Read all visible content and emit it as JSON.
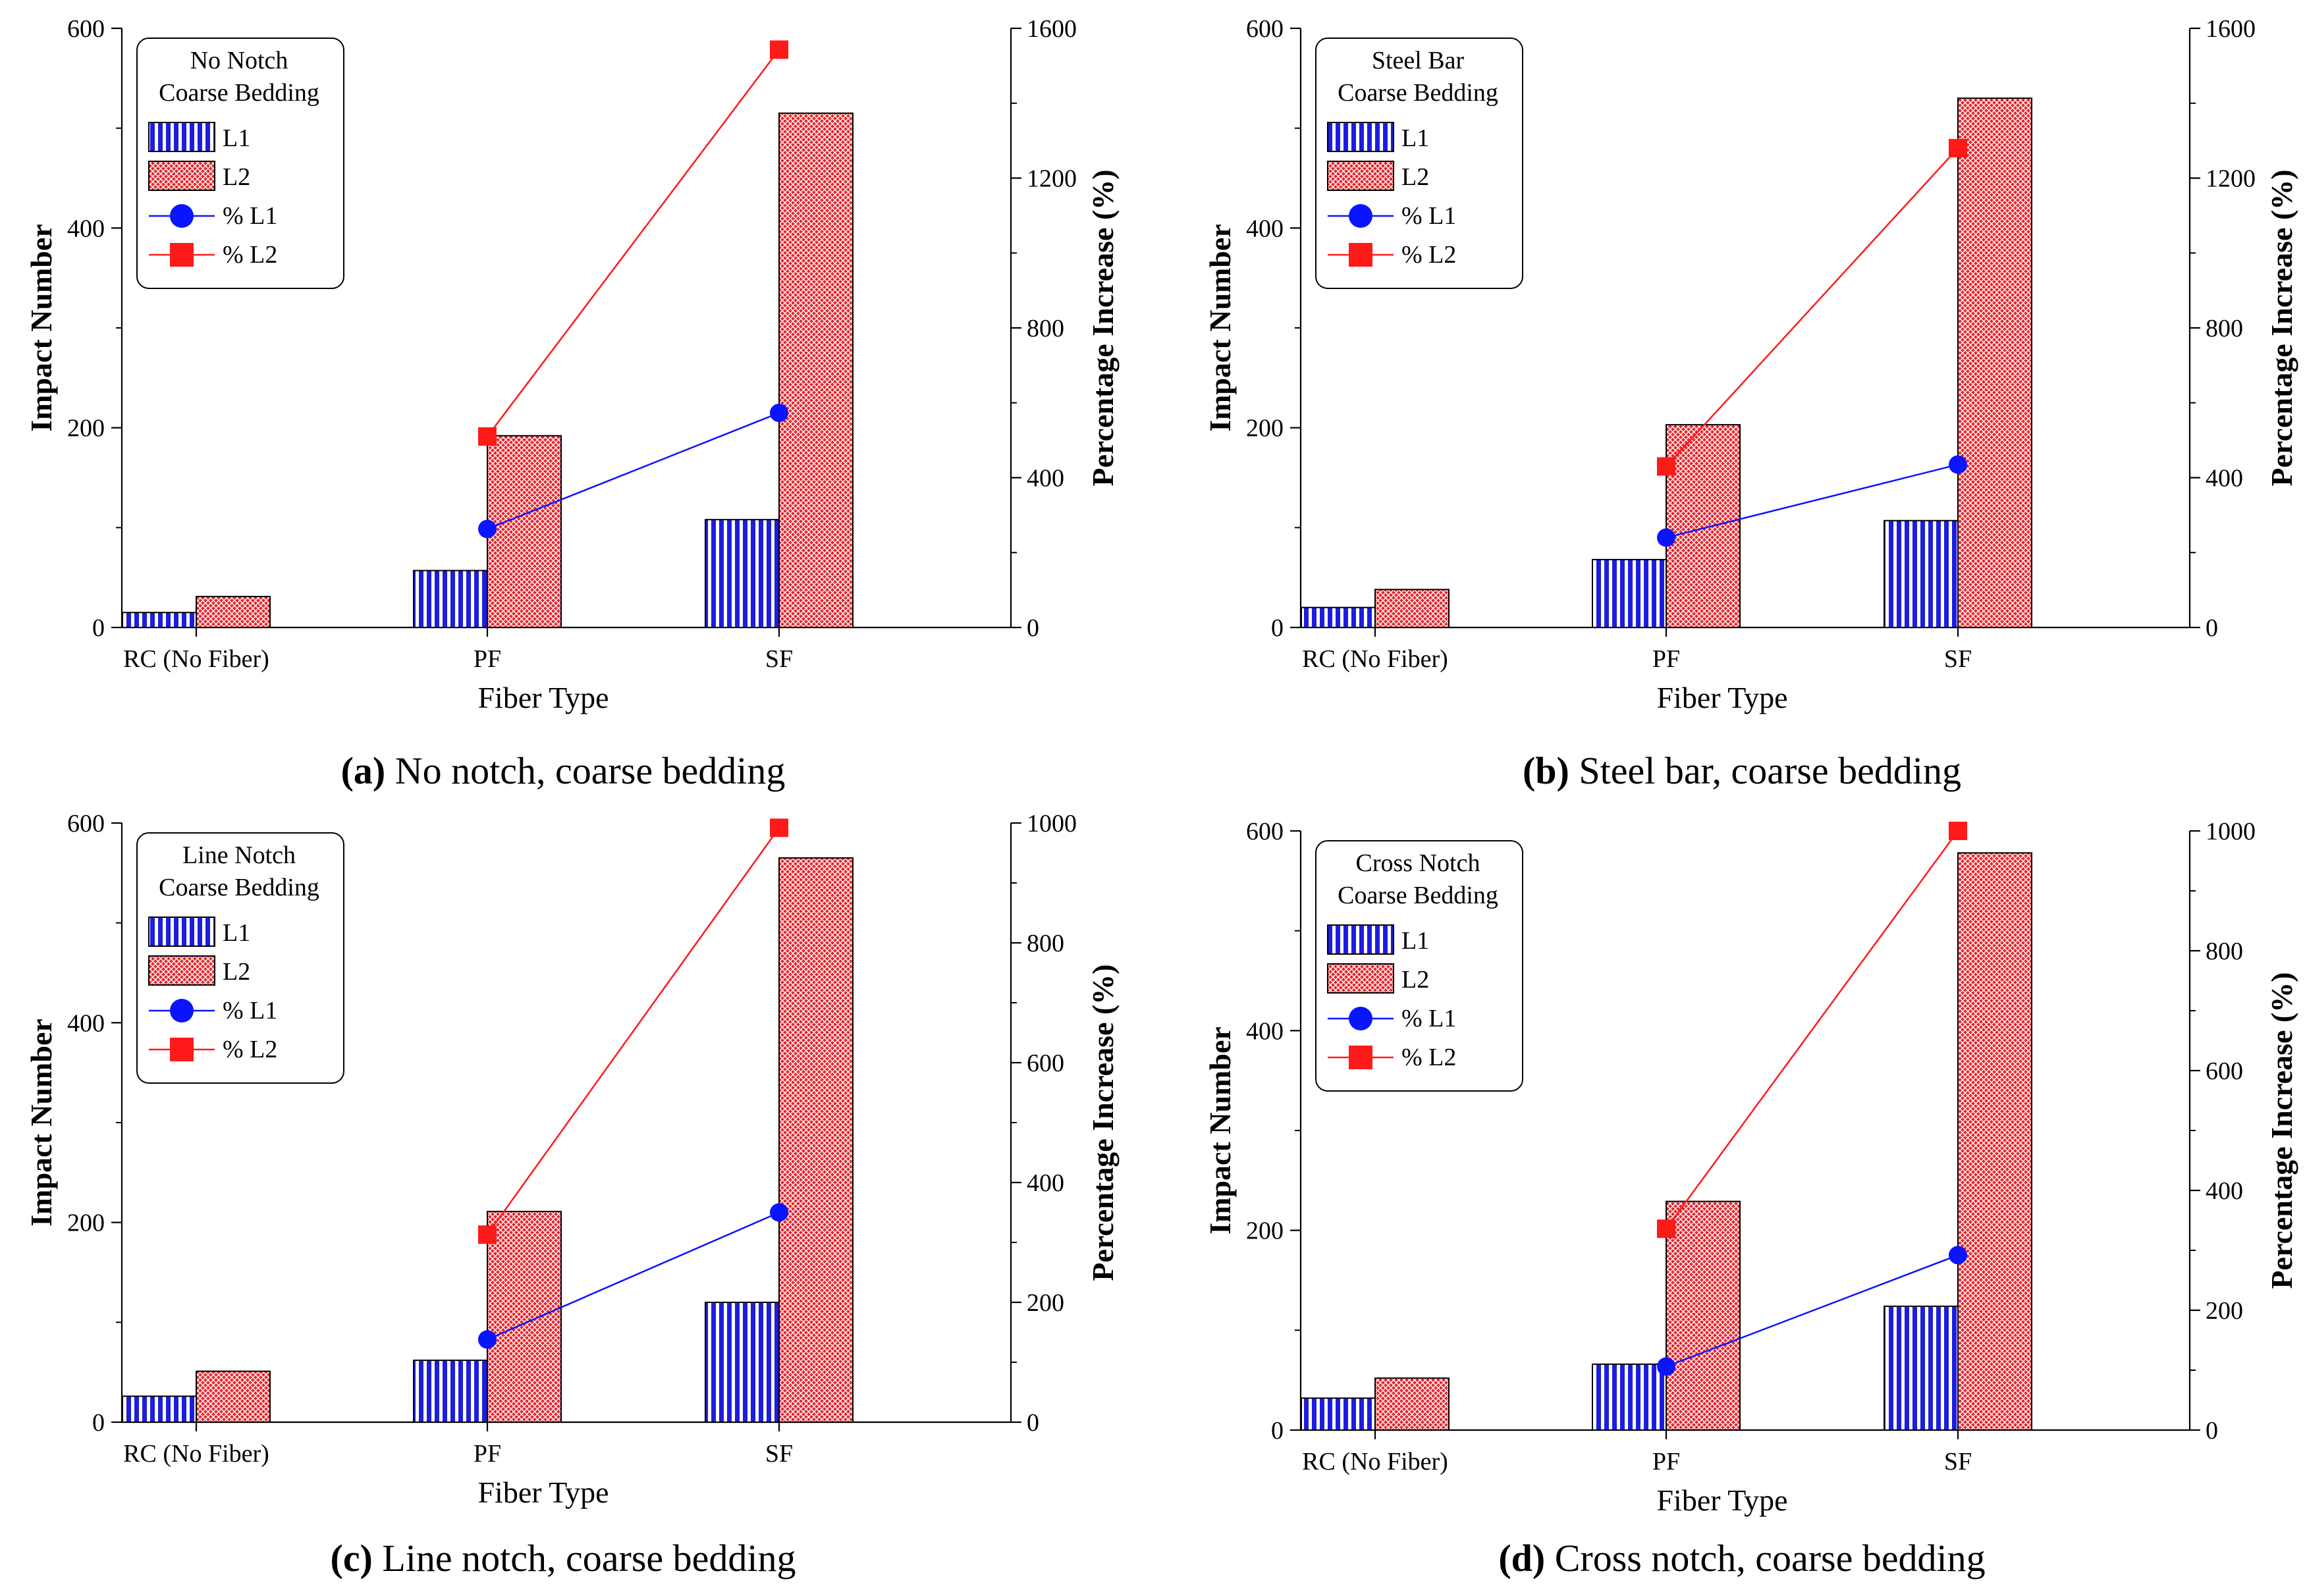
{
  "colors": {
    "l1": "#1d1de0",
    "l2": "#e8242b",
    "pct_l1": "#0a14ff",
    "pct_l2": "#ff1a1a"
  },
  "chart_data": [
    {
      "type": "bar",
      "id": "a",
      "caption_letter": "(a)",
      "caption_rest": " No notch, coarse bedding",
      "legend_title": [
        "No Notch",
        "Coarse Bedding"
      ],
      "xlabel": "Fiber Type",
      "ylabel": "Impact Number",
      "y2label": "Percentage Increase (%)",
      "categories": [
        "RC (No Fiber)",
        "PF",
        "SF"
      ],
      "ylim": [
        0,
        600
      ],
      "y2lim": [
        0,
        1600
      ],
      "yticks": [
        0,
        200,
        400,
        600
      ],
      "y2ticks": [
        0,
        400,
        800,
        1200,
        1600
      ],
      "series": [
        {
          "name": "L1",
          "kind": "bar",
          "values": [
            15,
            57,
            108
          ]
        },
        {
          "name": "L2",
          "kind": "bar",
          "values": [
            31,
            192,
            515
          ]
        },
        {
          "name": "% L1",
          "kind": "line",
          "values": [
            null,
            263,
            573
          ]
        },
        {
          "name": "% L2",
          "kind": "line",
          "values": [
            null,
            510,
            1543
          ]
        }
      ]
    },
    {
      "type": "bar",
      "id": "b",
      "caption_letter": "(b)",
      "caption_rest": " Steel bar, coarse bedding",
      "legend_title": [
        "Steel Bar",
        "Coarse Bedding"
      ],
      "xlabel": "Fiber Type",
      "ylabel": "Impact Number",
      "y2label": "Percentage Increase (%)",
      "categories": [
        "RC (No Fiber)",
        "PF",
        "SF"
      ],
      "ylim": [
        0,
        600
      ],
      "y2lim": [
        0,
        1600
      ],
      "yticks": [
        0,
        200,
        400,
        600
      ],
      "y2ticks": [
        0,
        400,
        800,
        1200,
        1600
      ],
      "series": [
        {
          "name": "L1",
          "kind": "bar",
          "values": [
            20,
            68,
            107
          ]
        },
        {
          "name": "L2",
          "kind": "bar",
          "values": [
            38,
            203,
            530
          ]
        },
        {
          "name": "% L1",
          "kind": "line",
          "values": [
            null,
            240,
            435
          ]
        },
        {
          "name": "% L2",
          "kind": "line",
          "values": [
            null,
            430,
            1280
          ]
        }
      ]
    },
    {
      "type": "bar",
      "id": "c",
      "caption_letter": "(c)",
      "caption_rest": " Line notch, coarse bedding",
      "legend_title": [
        "Line Notch",
        "Coarse Bedding"
      ],
      "xlabel": "Fiber Type",
      "ylabel": "Impact Number",
      "y2label": "Percentage Increase (%)",
      "categories": [
        "RC (No Fiber)",
        "PF",
        "SF"
      ],
      "ylim": [
        0,
        600
      ],
      "y2lim": [
        0,
        1000
      ],
      "yticks": [
        0,
        200,
        400,
        600
      ],
      "y2ticks": [
        0,
        200,
        400,
        600,
        800,
        1000
      ],
      "series": [
        {
          "name": "L1",
          "kind": "bar",
          "values": [
            26,
            62,
            120
          ]
        },
        {
          "name": "L2",
          "kind": "bar",
          "values": [
            51,
            211,
            565
          ]
        },
        {
          "name": "% L1",
          "kind": "line",
          "values": [
            null,
            138,
            350
          ]
        },
        {
          "name": "% L2",
          "kind": "line",
          "values": [
            null,
            313,
            992
          ]
        }
      ]
    },
    {
      "type": "bar",
      "id": "d",
      "caption_letter": "(d)",
      "caption_rest": " Cross notch, coarse bedding",
      "legend_title": [
        "Cross Notch",
        "Coarse Bedding"
      ],
      "xlabel": "Fiber Type",
      "ylabel": "Impact Number",
      "y2label": "Percentage Increase (%)",
      "categories": [
        "RC (No Fiber)",
        "PF",
        "SF"
      ],
      "ylim": [
        0,
        600
      ],
      "y2lim": [
        0,
        1000
      ],
      "yticks": [
        0,
        200,
        400,
        600
      ],
      "y2ticks": [
        0,
        200,
        400,
        600,
        800,
        1000
      ],
      "series": [
        {
          "name": "L1",
          "kind": "bar",
          "values": [
            32,
            66,
            124
          ]
        },
        {
          "name": "L2",
          "kind": "bar",
          "values": [
            52,
            229,
            578
          ]
        },
        {
          "name": "% L1",
          "kind": "line",
          "values": [
            null,
            106,
            292
          ]
        },
        {
          "name": "% L2",
          "kind": "line",
          "values": [
            null,
            336,
            1000
          ]
        }
      ]
    }
  ]
}
